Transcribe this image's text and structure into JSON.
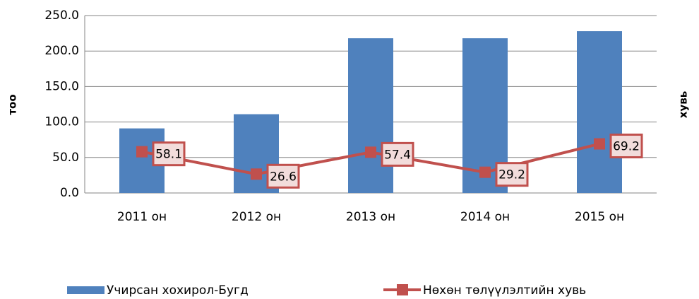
{
  "chart_data": {
    "type": "bar",
    "categories": [
      "2011 он",
      "2012 он",
      "2013 он",
      "2014 он",
      "2015 он"
    ],
    "y_label": "тоо",
    "y2_label": "хувь",
    "series": [
      {
        "name": "Учирсан хохирол-Бугд",
        "type": "bar",
        "color": "#4f81bd",
        "values": [
          91,
          111,
          218,
          218,
          228
        ]
      },
      {
        "name": "Нөхөн төлүүлэлтийн хувь",
        "type": "line",
        "color": "#c0504d",
        "values": [
          58.1,
          26.6,
          57.4,
          29.2,
          69.2
        ]
      }
    ],
    "ylim": [
      0,
      250
    ],
    "yticks": [
      {
        "value": 0,
        "label": "0.0"
      },
      {
        "value": 50,
        "label": "50.0"
      },
      {
        "value": 100,
        "label": "100.0"
      },
      {
        "value": 150,
        "label": "150.0"
      },
      {
        "value": 200,
        "label": "200.0"
      },
      {
        "value": 250,
        "label": "250.0"
      }
    ],
    "grid": true,
    "legend": "bottom"
  }
}
